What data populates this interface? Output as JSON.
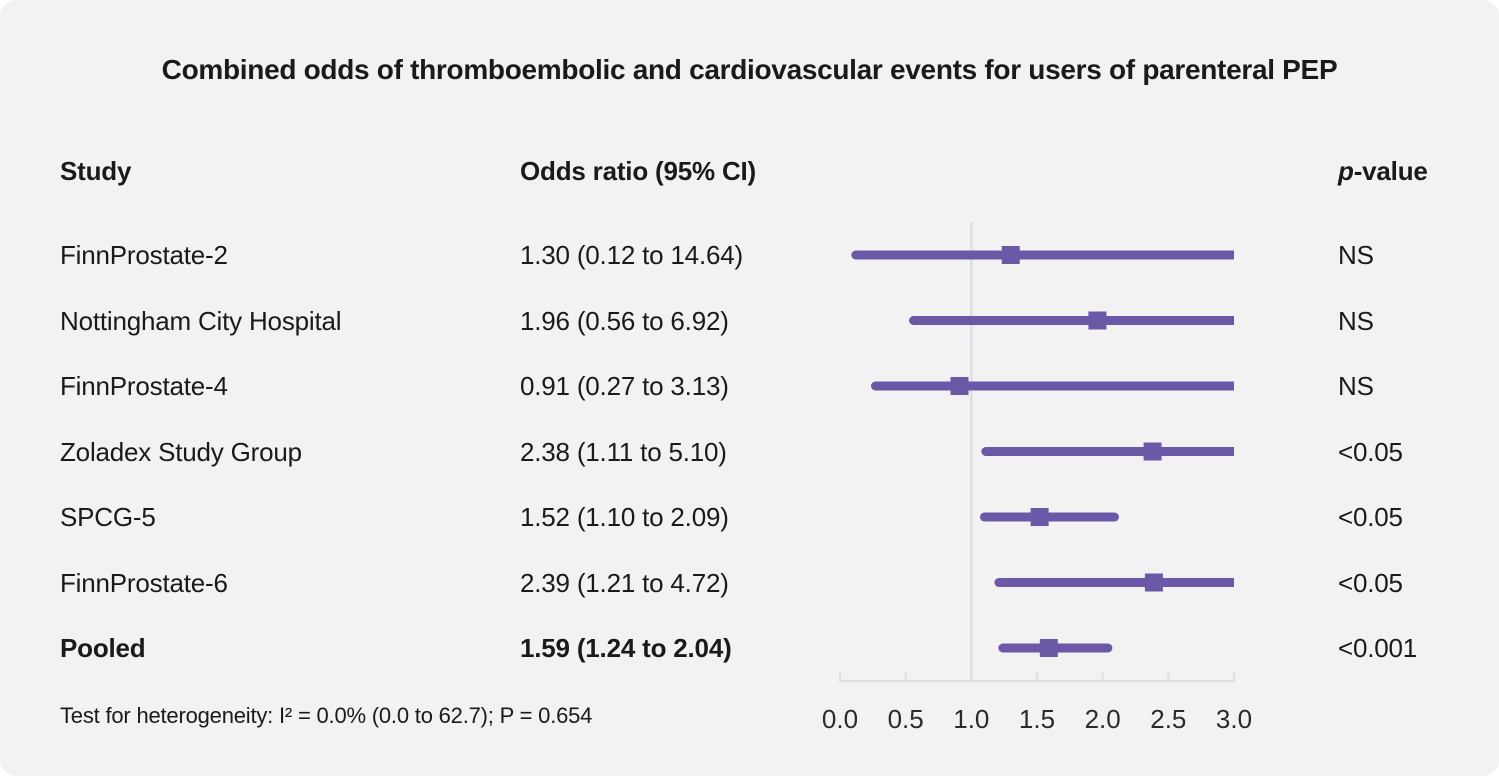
{
  "columns": {
    "study": "Study",
    "odds_ratio": "Odds ratio (95% CI)",
    "p_value_symbol": "p",
    "p_value_suffix": "-value"
  },
  "footer": {
    "heterogeneity": "Test for heterogeneity: I² = 0.0% (0.0 to 62.7); P = 0.654"
  },
  "colors": {
    "background": "#f2f2f2",
    "accent_purple": "#6b59a7",
    "axis_gray": "#dcdfe4",
    "text": "#1a1a1a"
  },
  "chart_data": {
    "type": "forest",
    "title": "Combined odds of thromboembolic and cardiovascular events for users of parenteral PEP",
    "x_axis": {
      "range": [
        0.0,
        3.0
      ],
      "ticks": [
        0.0,
        0.5,
        1.0,
        1.5,
        2.0,
        2.5,
        3.0
      ],
      "tick_labels": [
        "0.0",
        "0.5",
        "1.0",
        "1.5",
        "2.0",
        "2.5",
        "3.0"
      ],
      "reference_line": 1.0
    },
    "rows": [
      {
        "study": "FinnProstate-2",
        "or": 1.3,
        "ci_low": 0.12,
        "ci_high": 14.64,
        "or_label": "1.30 (0.12 to 14.64)",
        "p": "NS",
        "bold": false
      },
      {
        "study": "Nottingham City Hospital",
        "or": 1.96,
        "ci_low": 0.56,
        "ci_high": 6.92,
        "or_label": "1.96 (0.56 to 6.92)",
        "p": "NS",
        "bold": false
      },
      {
        "study": "FinnProstate-4",
        "or": 0.91,
        "ci_low": 0.27,
        "ci_high": 3.13,
        "or_label": "0.91 (0.27 to 3.13)",
        "p": "NS",
        "bold": false
      },
      {
        "study": "Zoladex Study Group",
        "or": 2.38,
        "ci_low": 1.11,
        "ci_high": 5.1,
        "or_label": "2.38 (1.11 to 5.10)",
        "p": "<0.05",
        "bold": false
      },
      {
        "study": "SPCG-5",
        "or": 1.52,
        "ci_low": 1.1,
        "ci_high": 2.09,
        "or_label": "1.52 (1.10 to 2.09)",
        "p": "<0.05",
        "bold": false
      },
      {
        "study": "FinnProstate-6",
        "or": 2.39,
        "ci_low": 1.21,
        "ci_high": 4.72,
        "or_label": "2.39 (1.21 to 4.72)",
        "p": "<0.05",
        "bold": false
      },
      {
        "study": "Pooled",
        "or": 1.59,
        "ci_low": 1.24,
        "ci_high": 2.04,
        "or_label": "1.59 (1.24 to 2.04)",
        "p": "<0.001",
        "bold": true
      }
    ]
  }
}
